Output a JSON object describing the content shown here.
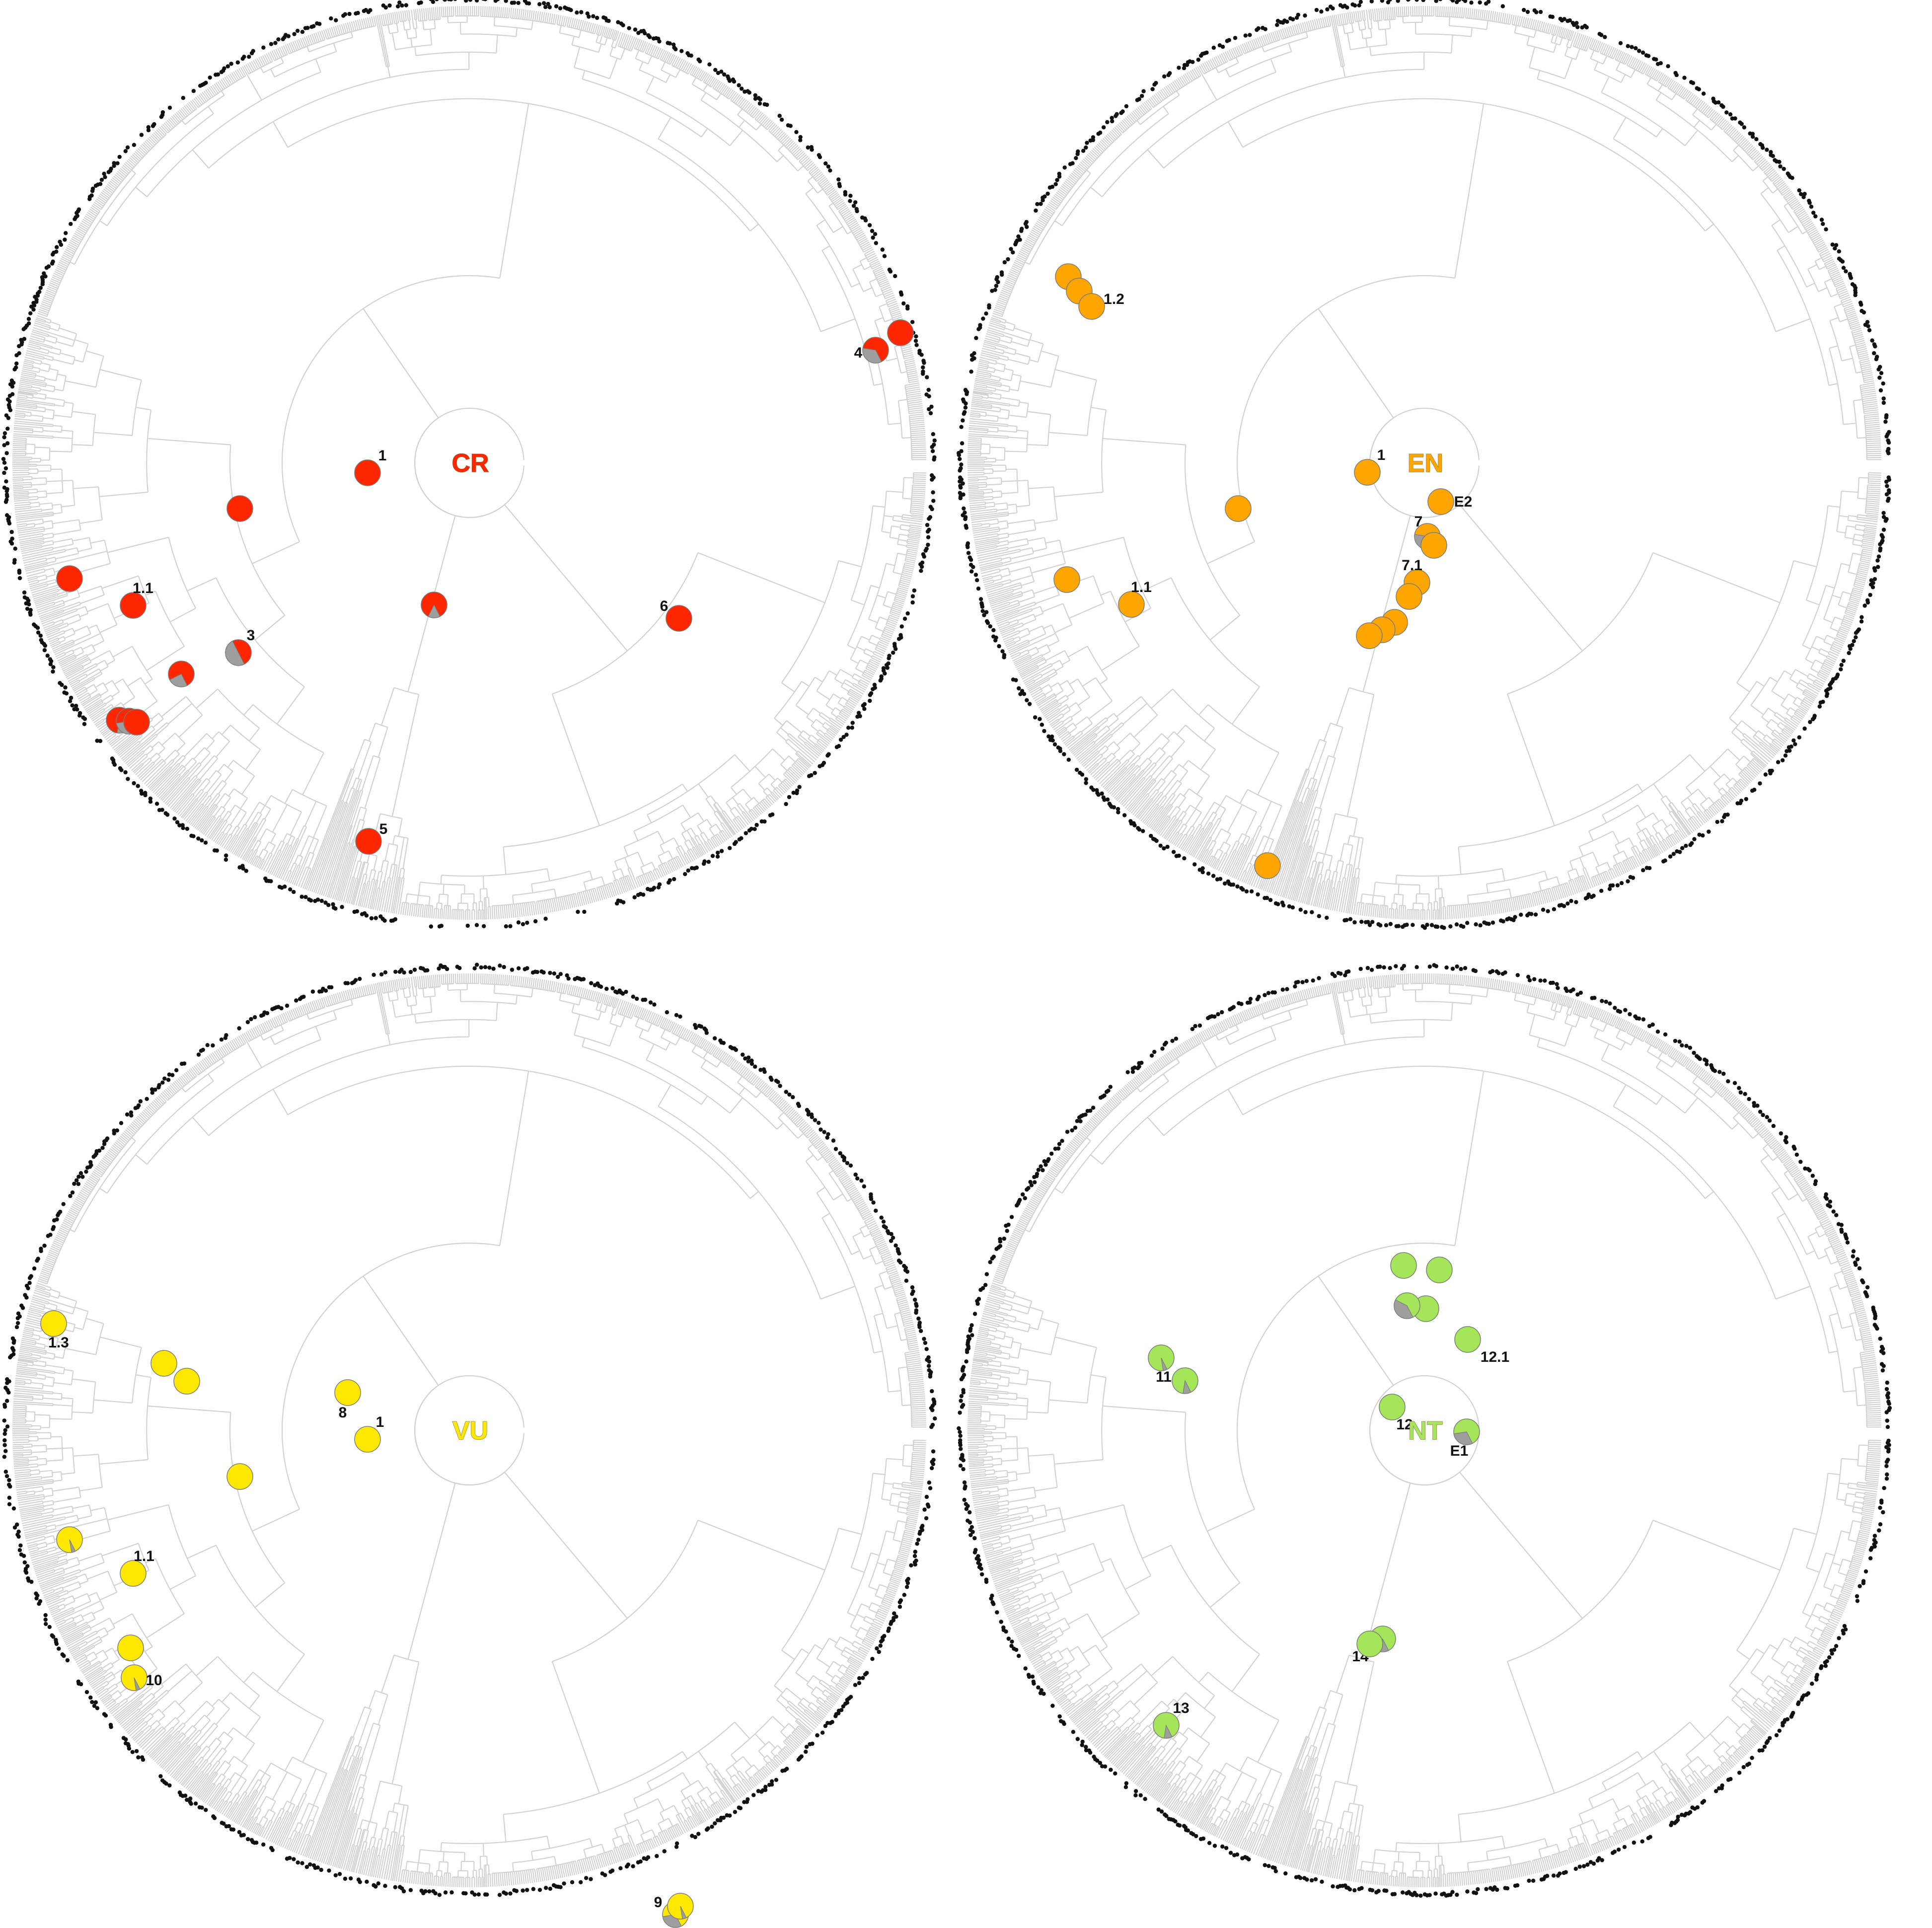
{
  "panels": [
    {
      "id": "CR",
      "center_label": "CR",
      "color": "#ff2600",
      "nodes": [
        {
          "label": "1",
          "gray": 0
        },
        {
          "label": "",
          "gray": 0
        },
        {
          "label": "1.1",
          "gray": 0
        },
        {
          "label": "",
          "gray": 0
        },
        {
          "label": "3",
          "gray": 0.5
        },
        {
          "label": "",
          "gray": 0.25
        },
        {
          "label": "",
          "gray": 0.1
        },
        {
          "label": "",
          "gray": 0.3
        },
        {
          "label": "",
          "gray": 0
        },
        {
          "label": "",
          "gray": 0.15
        },
        {
          "label": "5",
          "gray": 0
        },
        {
          "label": "6",
          "gray": 0
        },
        {
          "label": "4",
          "gray": 0.35
        },
        {
          "label": "",
          "gray": 0
        }
      ]
    },
    {
      "id": "EN",
      "center_label": "EN",
      "color": "#ffa500",
      "nodes": [
        {
          "label": "1",
          "gray": 0
        },
        {
          "label": "",
          "gray": 0
        },
        {
          "label": "1.1",
          "gray": 0
        },
        {
          "label": "",
          "gray": 0
        },
        {
          "label": "",
          "gray": 0
        },
        {
          "label": "",
          "gray": 0
        },
        {
          "label": "1.2",
          "gray": 0
        },
        {
          "label": "E2",
          "gray": 0
        },
        {
          "label": "7",
          "gray": 0.35
        },
        {
          "label": "",
          "gray": 0
        },
        {
          "label": "7.1",
          "gray": 0
        },
        {
          "label": "",
          "gray": 0
        },
        {
          "label": "",
          "gray": 0
        },
        {
          "label": "",
          "gray": 0
        },
        {
          "label": "",
          "gray": 0
        },
        {
          "label": "",
          "gray": 0
        }
      ]
    },
    {
      "id": "VU",
      "center_label": "VU",
      "color": "#ffe800",
      "nodes": [
        {
          "label": "1",
          "gray": 0
        },
        {
          "label": "",
          "gray": 0
        },
        {
          "label": "1.1",
          "gray": 0
        },
        {
          "label": "",
          "gray": 0.05
        },
        {
          "label": "",
          "gray": 0
        },
        {
          "label": "10",
          "gray": 0.05
        },
        {
          "label": "8",
          "gray": 0
        },
        {
          "label": "",
          "gray": 0
        },
        {
          "label": "",
          "gray": 0
        },
        {
          "label": "1.3",
          "gray": 0
        },
        {
          "label": "9",
          "gray": 0.3
        },
        {
          "label": "",
          "gray": 0.05
        }
      ]
    },
    {
      "id": "NT",
      "center_label": "NT",
      "color": "#a4e55a",
      "nodes": [
        {
          "label": "E1",
          "gray": 0.3
        },
        {
          "label": "12",
          "gray": 0
        },
        {
          "label": "12.1",
          "gray": 0
        },
        {
          "label": "",
          "gray": 0
        },
        {
          "label": "",
          "gray": 0.4
        },
        {
          "label": "",
          "gray": 0
        },
        {
          "label": "",
          "gray": 0
        },
        {
          "label": "11",
          "gray": 0.05
        },
        {
          "label": "",
          "gray": 0.1
        },
        {
          "label": "14",
          "gray": 0.1
        },
        {
          "label": "",
          "gray": 0
        },
        {
          "label": "13",
          "gray": 0.1
        }
      ]
    }
  ]
}
